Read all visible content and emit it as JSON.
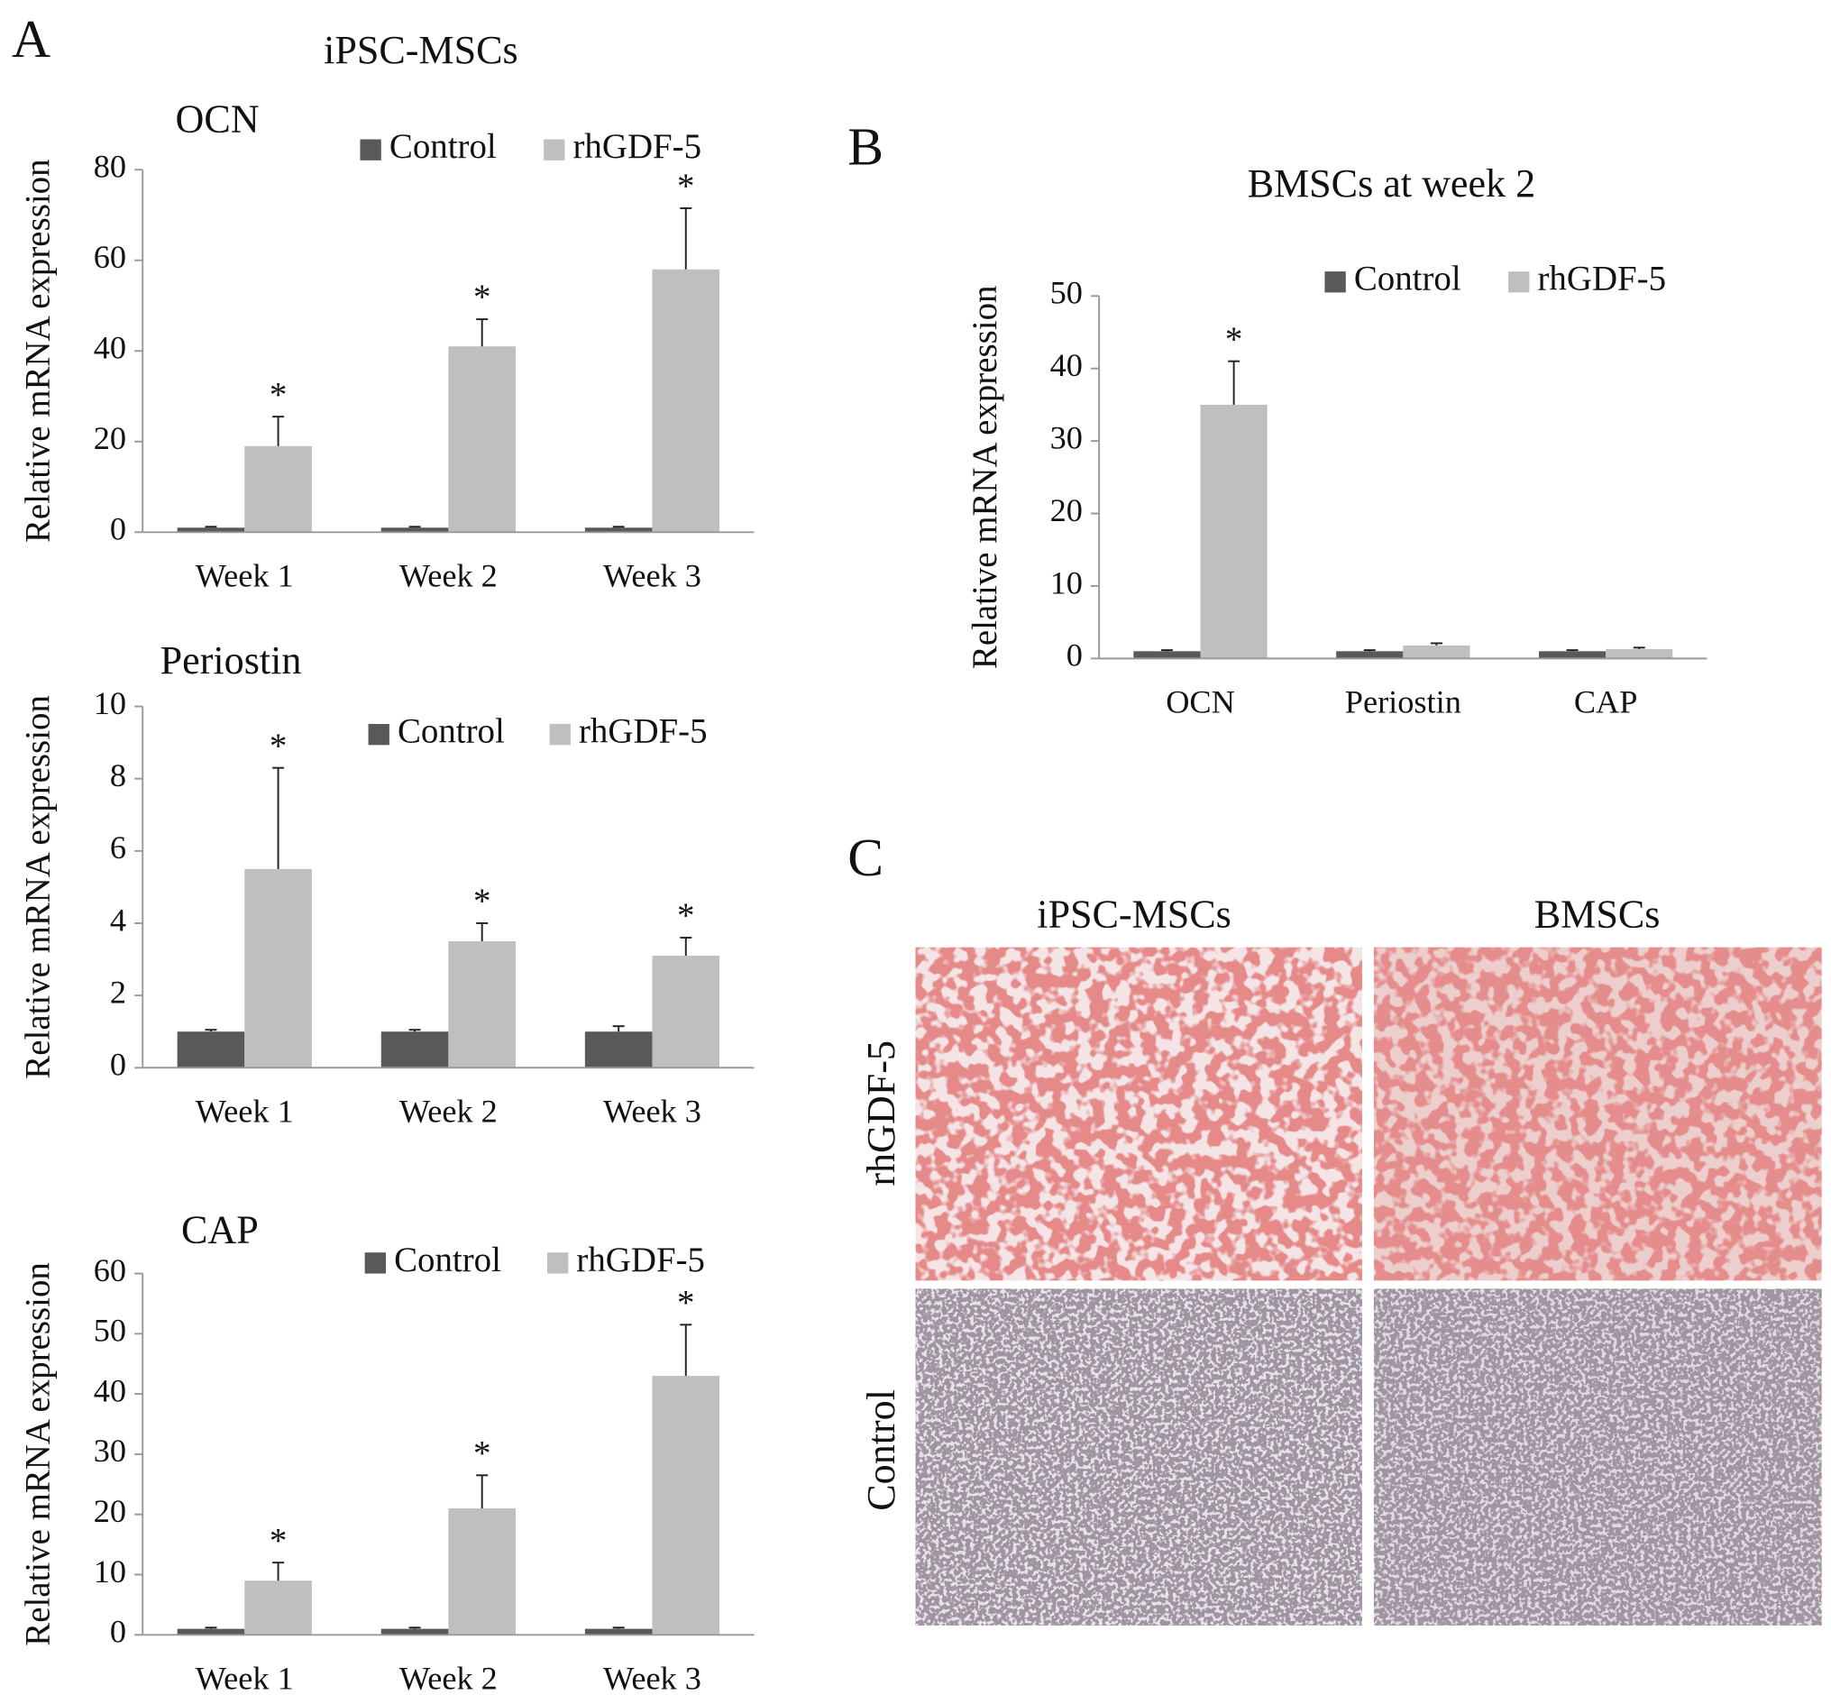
{
  "figure": {
    "panel_labels": [
      "A",
      "B",
      "C"
    ],
    "panel_a_title": "iPSC-MSCs"
  },
  "panel_c": {
    "columns": [
      "iPSC-MSCs",
      "BMSCs"
    ],
    "rows": [
      "rhGDF-5",
      "Control"
    ]
  },
  "chart_data": [
    {
      "type": "bar",
      "title": "OCN",
      "y_label": "Relative mRNA expression",
      "categories": [
        "Week 1",
        "Week 2",
        "Week 3"
      ],
      "series": [
        {
          "name": "Control",
          "color": "#595959",
          "values": [
            1,
            1,
            1
          ],
          "errors": [
            0.2,
            0.2,
            0.2
          ]
        },
        {
          "name": "rhGDF-5",
          "color": "#bfbfbf",
          "values": [
            19,
            41,
            58
          ],
          "errors": [
            6.5,
            6,
            13.5
          ]
        }
      ],
      "annotations": [
        "*",
        "*",
        "*"
      ],
      "ylim": [
        0,
        80
      ],
      "yticks": [
        0,
        20,
        40,
        60,
        80
      ]
    },
    {
      "type": "bar",
      "title": "Periostin",
      "y_label": "Relative mRNA expression",
      "categories": [
        "Week 1",
        "Week 2",
        "Week 3"
      ],
      "series": [
        {
          "name": "Control",
          "color": "#595959",
          "values": [
            1,
            1,
            1
          ],
          "errors": [
            0.05,
            0.05,
            0.15
          ]
        },
        {
          "name": "rhGDF-5",
          "color": "#bfbfbf",
          "values": [
            5.5,
            3.5,
            3.1
          ],
          "errors": [
            2.8,
            0.5,
            0.5
          ]
        }
      ],
      "annotations": [
        "*",
        "*",
        "*"
      ],
      "ylim": [
        0,
        10
      ],
      "yticks": [
        0,
        2,
        4,
        6,
        8,
        10
      ]
    },
    {
      "type": "bar",
      "title": "CAP",
      "y_label": "Relative mRNA expression",
      "categories": [
        "Week 1",
        "Week 2",
        "Week 3"
      ],
      "series": [
        {
          "name": "Control",
          "color": "#595959",
          "values": [
            1,
            1,
            1
          ],
          "errors": [
            0.2,
            0.2,
            0.2
          ]
        },
        {
          "name": "rhGDF-5",
          "color": "#bfbfbf",
          "values": [
            9,
            21,
            43
          ],
          "errors": [
            3,
            5.5,
            8.5
          ]
        }
      ],
      "annotations": [
        "*",
        "*",
        "*"
      ],
      "ylim": [
        0,
        60
      ],
      "yticks": [
        0,
        10,
        20,
        30,
        40,
        50,
        60
      ]
    },
    {
      "type": "bar",
      "title": "BMSCs at week 2",
      "y_label": "Relative mRNA expression",
      "categories": [
        "OCN",
        "Periostin",
        "CAP"
      ],
      "series": [
        {
          "name": "Control",
          "color": "#595959",
          "values": [
            1,
            1,
            1
          ],
          "errors": [
            0.15,
            0.15,
            0.15
          ]
        },
        {
          "name": "rhGDF-5",
          "color": "#bfbfbf",
          "values": [
            35,
            1.8,
            1.3
          ],
          "errors": [
            6,
            0.3,
            0.2
          ]
        }
      ],
      "annotations": [
        "*",
        null,
        null
      ],
      "ylim": [
        0,
        50
      ],
      "yticks": [
        0,
        10,
        20,
        30,
        40,
        50
      ]
    }
  ]
}
